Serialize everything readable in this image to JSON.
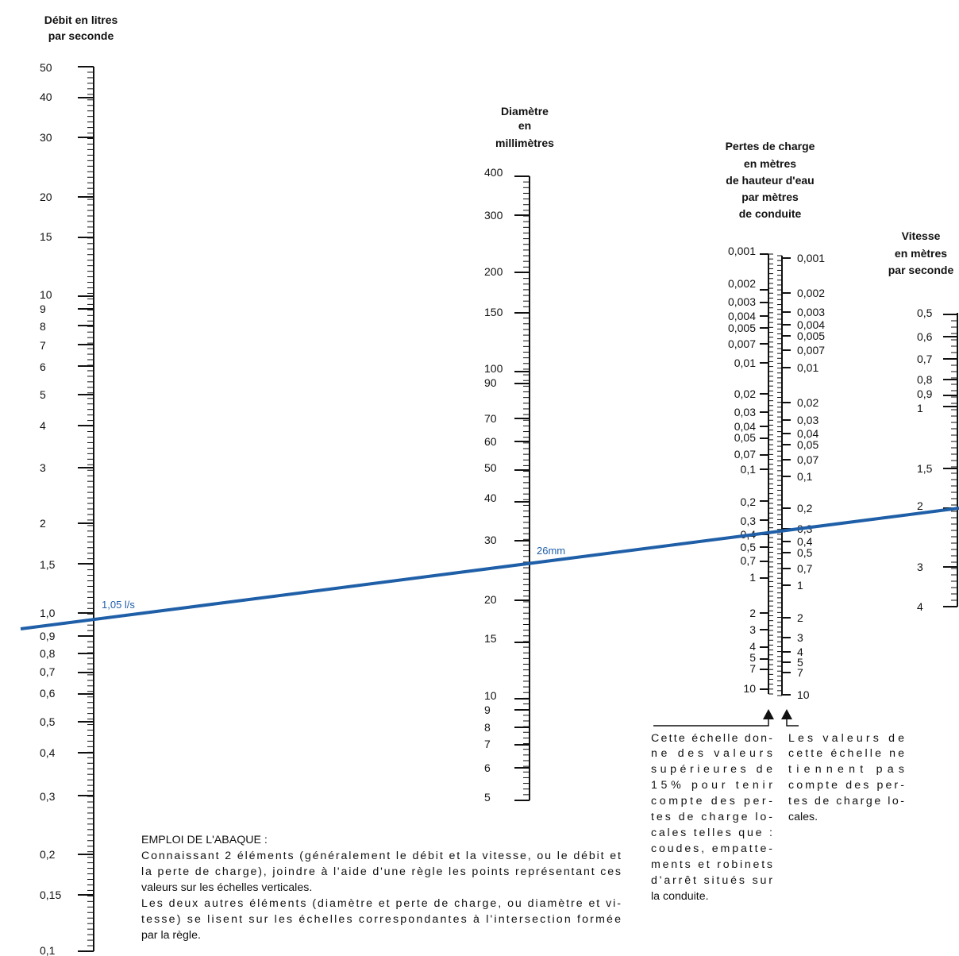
{
  "scales": {
    "flow": {
      "title": [
        "Débit en litres",
        "par seconde"
      ],
      "labels": [
        "50",
        "40",
        "30",
        "20",
        "15",
        "10",
        "9",
        "8",
        "7",
        "6",
        "5",
        "4",
        "3",
        "2",
        "1,5",
        "1,0",
        "0,9",
        "0,8",
        "0,7",
        "0,6",
        "0,5",
        "0,4",
        "0,3",
        "0,2",
        "0,15",
        "0,1"
      ]
    },
    "diameter": {
      "title": [
        "Diamètre",
        "en",
        "millimètres"
      ],
      "labels": [
        "400",
        "300",
        "200",
        "150",
        "100",
        "90",
        "70",
        "60",
        "50",
        "40",
        "30",
        "20",
        "15",
        "10",
        "9",
        "8",
        "7",
        "6",
        "5"
      ]
    },
    "headloss": {
      "title": [
        "Pertes de charge",
        "en mètres",
        "de hauteur d'eau",
        "par mètres",
        "de conduite"
      ],
      "left_labels": [
        "0,001",
        "0,002",
        "0,003",
        "0,004",
        "0,005",
        "0,007",
        "0,01",
        "0,02",
        "0,03",
        "0,04",
        "0,05",
        "0,07",
        "0,1",
        "0,2",
        "0,3",
        "0,4",
        "0,5",
        "0,7",
        "1",
        "2",
        "3",
        "4",
        "5",
        "7",
        "10"
      ],
      "right_labels": [
        "0,001",
        "0,002",
        "0,003",
        "0,004",
        "0,005",
        "0,007",
        "0,01",
        "0,02",
        "0,03",
        "0,04",
        "0,05",
        "0,07",
        "0,1",
        "0,2",
        "0,3",
        "0,4",
        "0,5",
        "0,7",
        "1",
        "2",
        "3",
        "4",
        "5",
        "7",
        "10"
      ]
    },
    "velocity": {
      "title": [
        "Vitesse",
        "en mètres",
        "par seconde"
      ],
      "labels": [
        "0,5",
        "0,6",
        "0,7",
        "0,8",
        "0,9",
        "1",
        "1,5",
        "2",
        "3",
        "4"
      ]
    }
  },
  "example": {
    "flow_label": "1,05 l/s",
    "diameter_label": "26mm",
    "line_color": "#1f5fa8"
  },
  "notes": {
    "left_arrow_note": [
      "Cette échelle don-",
      "ne des valeurs",
      "supérieures de",
      "15% pour tenir",
      "compte des per-",
      "tes de charge lo-",
      "cales telles que :",
      "coudes, empatte-",
      "ments et robinets",
      "d'arrêt situés sur",
      "la conduite."
    ],
    "right_arrow_note": [
      "Les valeurs de",
      "cette échelle ne",
      "tiennent pas",
      "compte des per-",
      "tes de charge lo-",
      "cales."
    ],
    "usage": [
      "EMPLOI DE L'ABAQUE :",
      "Connaissant 2 éléments (généralement le débit et la vitesse, ou le débit et",
      "la perte de charge), joindre à l'aide d'une règle les points représentant ces",
      "valeurs sur les échelles verticales.",
      "Les deux autres éléments (diamètre et perte de charge, ou diamètre et vi-",
      "tesse) se lisent sur les échelles correspondantes à l'intersection formée",
      "par la règle."
    ]
  }
}
